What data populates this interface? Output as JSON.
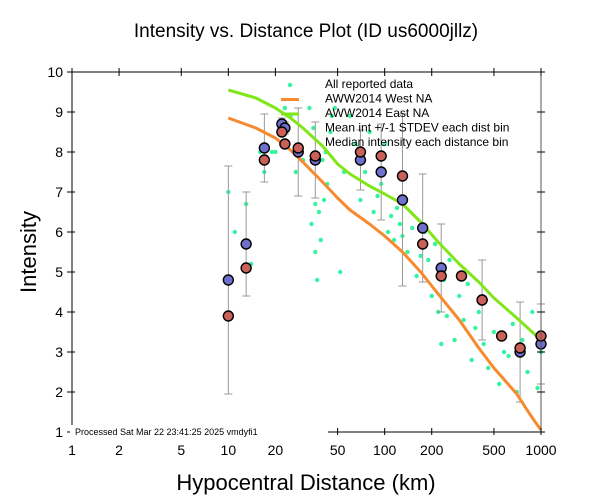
{
  "chart_data": {
    "type": "scatter",
    "title": "Intensity vs. Distance Plot (ID us6000jllz)",
    "xlabel": "Hypocentral Distance (km)",
    "ylabel": "Intensity",
    "xscale": "log",
    "xlim": [
      1,
      1000
    ],
    "ylim": [
      1,
      10
    ],
    "xticks": [
      1,
      2,
      5,
      10,
      20,
      50,
      100,
      200,
      500,
      1000
    ],
    "xtick_labels": [
      "1",
      "2",
      "5",
      "10",
      "20",
      "50",
      "100",
      "200",
      "500",
      "1000"
    ],
    "yticks": [
      1,
      2,
      3,
      4,
      5,
      6,
      7,
      8,
      9,
      10
    ],
    "ytick_labels": [
      "1",
      "2",
      "3",
      "4",
      "5",
      "6",
      "7",
      "8",
      "9",
      "10"
    ],
    "grid": false,
    "legend_position": "top-right",
    "annotation": "Processed Sat Mar 22 23:41:25 2025 vmdyfi1",
    "colors": {
      "reported": "#33f5a0",
      "west": "#f78a2e",
      "east": "#80e61a",
      "mean": "#6f6fcc",
      "median": "#c9605a",
      "errorbar": "#999999"
    },
    "legend": [
      {
        "label": "All reported data",
        "kind": "dot",
        "color": "#33f5a0"
      },
      {
        "label": "AWW2014 West NA",
        "kind": "line",
        "color": "#f78a2e"
      },
      {
        "label": "AWW2014 East NA",
        "kind": "line",
        "color": "#80e61a"
      },
      {
        "label": "Mean int +/-1 STDEV each dist bin",
        "kind": "circle",
        "color": "#6f6fcc"
      },
      {
        "label": "Median intensity each distance bin",
        "kind": "circle",
        "color": "#c9605a"
      }
    ],
    "series": [
      {
        "name": "AWW2014 East NA",
        "type": "line",
        "x": [
          10,
          15,
          20,
          25,
          30,
          40,
          50,
          60,
          80,
          100,
          130,
          170,
          220,
          300,
          400,
          500,
          700,
          1000
        ],
        "y": [
          9.55,
          9.35,
          9.1,
          8.85,
          8.6,
          8.15,
          7.7,
          7.45,
          7.15,
          6.95,
          6.7,
          6.25,
          5.75,
          5.2,
          4.75,
          4.35,
          3.85,
          3.3
        ]
      },
      {
        "name": "AWW2014 West NA",
        "type": "line",
        "x": [
          10,
          15,
          20,
          25,
          30,
          40,
          50,
          60,
          80,
          100,
          130,
          170,
          220,
          300,
          400,
          500,
          600,
          700,
          800,
          900,
          1000
        ],
        "y": [
          8.85,
          8.6,
          8.35,
          8.05,
          7.75,
          7.25,
          6.85,
          6.55,
          6.2,
          5.9,
          5.5,
          5.0,
          4.45,
          3.8,
          3.1,
          2.6,
          2.25,
          1.95,
          1.6,
          1.3,
          1.05
        ]
      },
      {
        "name": "Mean int +/-1 STDEV each dist bin",
        "type": "errorbar",
        "x": [
          10,
          13,
          17,
          22,
          23,
          28,
          36,
          70,
          95,
          130,
          175,
          230,
          420,
          735,
          1000
        ],
        "y": [
          4.8,
          5.7,
          8.1,
          8.7,
          8.6,
          8.0,
          7.8,
          7.8,
          7.5,
          6.8,
          6.1,
          5.1,
          4.3,
          3.0,
          3.2
        ],
        "stdev": [
          2.85,
          1.3,
          0.85,
          0.15,
          0.15,
          1.1,
          0.95,
          0.75,
          1.2,
          2.15,
          1.35,
          1.1,
          1.0,
          1.25,
          1.0
        ]
      },
      {
        "name": "Median intensity each distance bin",
        "type": "scatter",
        "x": [
          10,
          13,
          17,
          22,
          23,
          28,
          36,
          70,
          95,
          130,
          175,
          230,
          310,
          420,
          560,
          735,
          1000
        ],
        "y": [
          3.9,
          5.1,
          7.8,
          8.5,
          8.2,
          8.1,
          7.9,
          8.0,
          7.9,
          7.4,
          5.7,
          4.9,
          4.9,
          4.3,
          3.4,
          3.1,
          3.4
        ]
      },
      {
        "name": "All reported data",
        "type": "scatter",
        "clusters": [
          {
            "x": [
              10,
              11,
              13,
              14,
              16,
              17,
              19,
              20,
              23,
              25,
              27,
              30,
              33,
              35,
              36,
              38,
              40,
              42,
              45
            ],
            "y": [
              7,
              6,
              6.7,
              5.2,
              8,
              7.5,
              8,
              8,
              9.1,
              8.9,
              7.5,
              7.8,
              9.1,
              8.6,
              6.7,
              6.5,
              7.8,
              8,
              8.5
            ]
          },
          {
            "x": [
              34,
              36,
              37,
              39,
              41,
              43,
              46,
              48,
              52,
              55,
              60,
              65,
              70,
              75,
              80,
              85,
              90,
              95,
              100
            ],
            "y": [
              6.2,
              5.5,
              4.8,
              5.8,
              6.8,
              7.2,
              8.9,
              9.1,
              5.0,
              7.5,
              8.9,
              8.2,
              6.8,
              7.5,
              8.5,
              6.5,
              6.9,
              7.2,
              8.2
            ]
          },
          {
            "x": [
              105,
              110,
              115,
              120,
              125,
              130,
              140,
              150,
              160,
              170,
              180,
              190,
              200,
              210,
              220,
              230,
              240,
              250,
              260,
              280,
              300,
              320,
              340,
              360,
              380,
              400,
              430,
              460,
              500,
              540,
              580,
              620,
              660,
              700,
              760,
              820,
              880,
              950,
              1000
            ],
            "y": [
              6.0,
              6.4,
              5.8,
              6.6,
              6.2,
              5.9,
              5.5,
              6.1,
              4.9,
              5.4,
              6.0,
              5.3,
              4.4,
              5.7,
              4.0,
              3.2,
              4.8,
              3.9,
              5.3,
              3.3,
              4.4,
              3.8,
              4.7,
              2.8,
              3.6,
              4.0,
              3.2,
              2.6,
              3.5,
              2.2,
              3.0,
              2.9,
              3.7,
              2.0,
              3.3,
              2.5,
              4.0,
              2.1,
              3.0
            ]
          }
        ]
      }
    ]
  }
}
